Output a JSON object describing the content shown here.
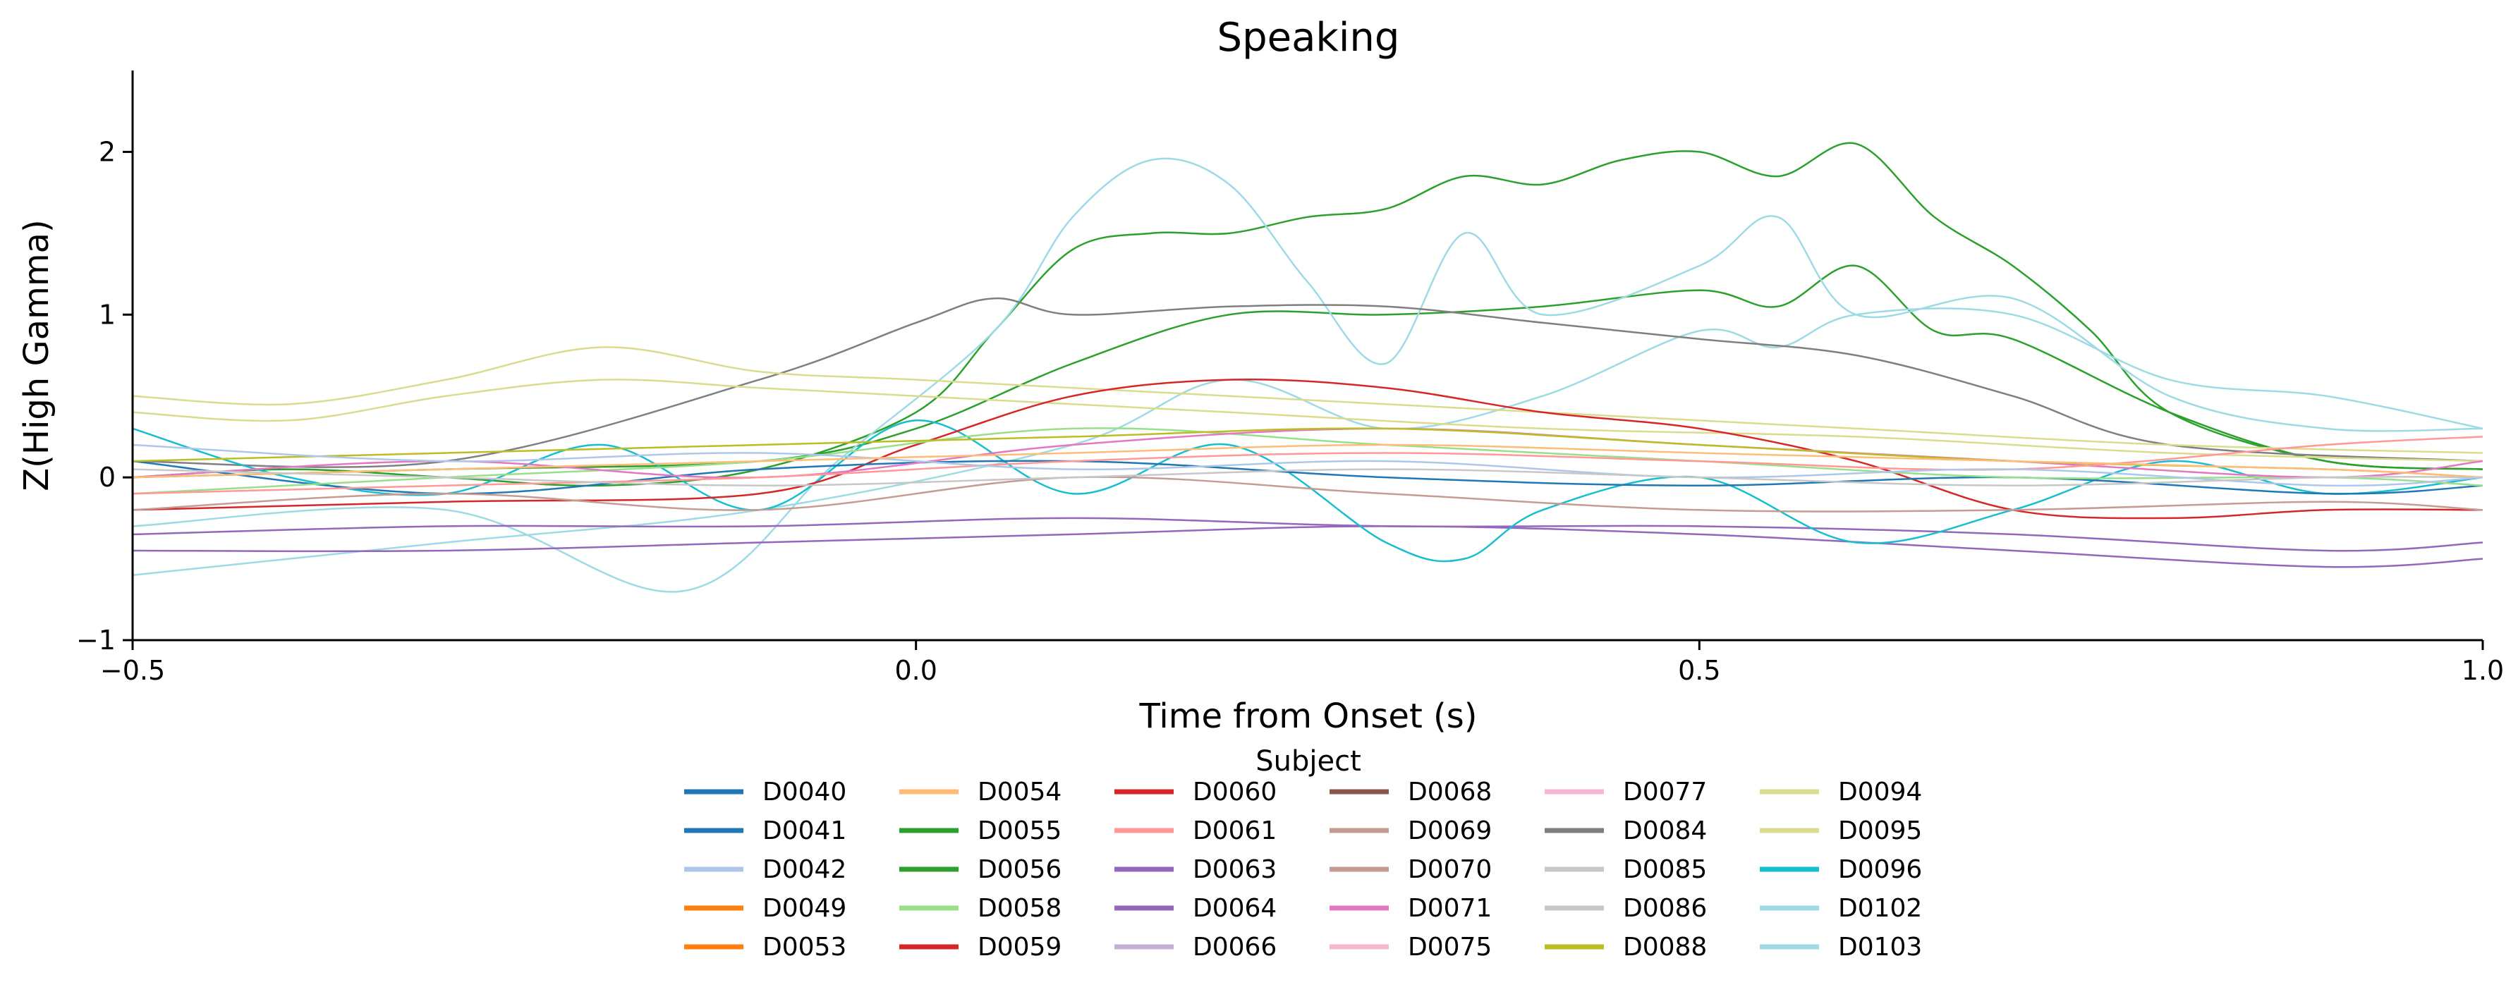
{
  "chart_data": {
    "type": "line",
    "title": "Speaking",
    "xlabel": "Time from Onset (s)",
    "ylabel": "Z(High Gamma)",
    "xlim": [
      -0.5,
      1.0
    ],
    "ylim": [
      -1.0,
      2.5
    ],
    "xticks": [
      -0.5,
      0.0,
      0.5,
      1.0
    ],
    "xtick_labels": [
      "−0.5",
      "0.0",
      "0.5",
      "1.0"
    ],
    "yticks": [
      -1,
      0,
      1,
      2
    ],
    "ytick_labels": [
      "−1",
      "0",
      "1",
      "2"
    ],
    "grid": false,
    "legend": {
      "title": "Subject",
      "placement": "bottom-center",
      "columns": 6
    },
    "subjects": [
      {
        "name": "D0040",
        "color": "#1f77b4"
      },
      {
        "name": "D0041",
        "color": "#1f77b4"
      },
      {
        "name": "D0042",
        "color": "#aec7e8"
      },
      {
        "name": "D0049",
        "color": "#ff7f0e"
      },
      {
        "name": "D0053",
        "color": "#ff7f0e"
      },
      {
        "name": "D0054",
        "color": "#ffbb78"
      },
      {
        "name": "D0055",
        "color": "#2ca02c"
      },
      {
        "name": "D0056",
        "color": "#2ca02c"
      },
      {
        "name": "D0058",
        "color": "#98df8a"
      },
      {
        "name": "D0059",
        "color": "#d62728"
      },
      {
        "name": "D0060",
        "color": "#d62728"
      },
      {
        "name": "D0061",
        "color": "#ff9896"
      },
      {
        "name": "D0063",
        "color": "#9467bd"
      },
      {
        "name": "D0064",
        "color": "#9467bd"
      },
      {
        "name": "D0066",
        "color": "#c5b0d5"
      },
      {
        "name": "D0068",
        "color": "#8c564b"
      },
      {
        "name": "D0069",
        "color": "#c49c94"
      },
      {
        "name": "D0070",
        "color": "#c49c94"
      },
      {
        "name": "D0071",
        "color": "#e377c2"
      },
      {
        "name": "D0075",
        "color": "#f7b6d2"
      },
      {
        "name": "D0077",
        "color": "#f7b6d2"
      },
      {
        "name": "D0084",
        "color": "#7f7f7f"
      },
      {
        "name": "D0085",
        "color": "#c7c7c7"
      },
      {
        "name": "D0086",
        "color": "#c7c7c7"
      },
      {
        "name": "D0088",
        "color": "#bcbd22"
      },
      {
        "name": "D0094",
        "color": "#dbdb8d"
      },
      {
        "name": "D0095",
        "color": "#dbdb8d"
      },
      {
        "name": "D0096",
        "color": "#17becf"
      },
      {
        "name": "D0102",
        "color": "#9edae5"
      },
      {
        "name": "D0103",
        "color": "#9edae5"
      }
    ],
    "series": [
      {
        "subject": "D0055",
        "color": "#2ca02c",
        "x": [
          -0.5,
          -0.4,
          -0.3,
          -0.2,
          -0.1,
          0.0,
          0.05,
          0.1,
          0.15,
          0.2,
          0.25,
          0.3,
          0.35,
          0.4,
          0.45,
          0.5,
          0.55,
          0.6,
          0.65,
          0.7,
          0.75,
          0.8,
          0.9,
          1.0
        ],
        "y": [
          0.0,
          0.05,
          0.0,
          -0.05,
          0.05,
          0.4,
          0.9,
          1.4,
          1.5,
          1.5,
          1.6,
          1.65,
          1.85,
          1.8,
          1.95,
          2.0,
          1.85,
          2.05,
          1.6,
          1.3,
          0.9,
          0.4,
          0.1,
          0.05
        ]
      },
      {
        "subject": "D0056",
        "color": "#2ca02c",
        "x": [
          -0.5,
          -0.3,
          -0.1,
          0.0,
          0.1,
          0.2,
          0.3,
          0.4,
          0.5,
          0.55,
          0.6,
          0.65,
          0.7,
          0.8,
          0.9,
          1.0
        ],
        "y": [
          0.0,
          0.05,
          0.1,
          0.3,
          0.7,
          1.0,
          1.0,
          1.05,
          1.15,
          1.05,
          1.3,
          0.9,
          0.85,
          0.4,
          0.1,
          0.05
        ]
      },
      {
        "subject": "D0102",
        "color": "#9edae5",
        "x": [
          -0.5,
          -0.3,
          -0.15,
          -0.05,
          0.05,
          0.1,
          0.15,
          0.2,
          0.25,
          0.3,
          0.35,
          0.4,
          0.5,
          0.55,
          0.6,
          0.7,
          0.8,
          0.9,
          1.0
        ],
        "y": [
          -0.3,
          -0.2,
          -0.7,
          0.1,
          0.9,
          1.6,
          1.95,
          1.8,
          1.2,
          0.7,
          1.5,
          1.0,
          1.3,
          1.6,
          1.0,
          1.1,
          0.5,
          0.3,
          0.3
        ]
      },
      {
        "subject": "D0103",
        "color": "#9edae5",
        "x": [
          -0.5,
          -0.3,
          -0.1,
          0.1,
          0.2,
          0.3,
          0.4,
          0.5,
          0.55,
          0.6,
          0.7,
          0.8,
          0.9,
          1.0
        ],
        "y": [
          -0.6,
          -0.4,
          -0.2,
          0.2,
          0.6,
          0.3,
          0.5,
          0.9,
          0.8,
          1.0,
          1.0,
          0.6,
          0.5,
          0.3
        ]
      },
      {
        "subject": "D0084",
        "color": "#7f7f7f",
        "x": [
          -0.5,
          -0.3,
          -0.1,
          0.0,
          0.05,
          0.1,
          0.2,
          0.3,
          0.4,
          0.5,
          0.6,
          0.7,
          0.8,
          1.0
        ],
        "y": [
          0.1,
          0.1,
          0.6,
          0.95,
          1.1,
          1.0,
          1.05,
          1.05,
          0.95,
          0.85,
          0.75,
          0.5,
          0.2,
          0.1
        ]
      },
      {
        "subject": "D0094",
        "color": "#dbdb8d",
        "x": [
          -0.5,
          -0.4,
          -0.3,
          -0.2,
          -0.1,
          0.0,
          0.2,
          0.4,
          0.6,
          0.8,
          1.0
        ],
        "y": [
          0.5,
          0.45,
          0.6,
          0.8,
          0.65,
          0.6,
          0.5,
          0.4,
          0.3,
          0.2,
          0.15
        ]
      },
      {
        "subject": "D0095",
        "color": "#dbdb8d",
        "x": [
          -0.5,
          -0.4,
          -0.3,
          -0.2,
          -0.1,
          0.0,
          0.2,
          0.4,
          0.6,
          0.8,
          1.0
        ],
        "y": [
          0.4,
          0.35,
          0.5,
          0.6,
          0.55,
          0.5,
          0.4,
          0.3,
          0.25,
          0.15,
          0.1
        ]
      },
      {
        "subject": "D0063",
        "color": "#9467bd",
        "x": [
          -0.5,
          -0.3,
          -0.1,
          0.1,
          0.3,
          0.5,
          0.7,
          0.9,
          1.0
        ],
        "y": [
          -0.45,
          -0.45,
          -0.4,
          -0.35,
          -0.3,
          -0.35,
          -0.45,
          -0.55,
          -0.5
        ]
      },
      {
        "subject": "D0064",
        "color": "#9467bd",
        "x": [
          -0.5,
          -0.3,
          -0.1,
          0.1,
          0.3,
          0.5,
          0.7,
          0.9,
          1.0
        ],
        "y": [
          -0.35,
          -0.3,
          -0.3,
          -0.25,
          -0.3,
          -0.3,
          -0.35,
          -0.45,
          -0.4
        ]
      },
      {
        "subject": "D0096",
        "color": "#17becf",
        "x": [
          -0.5,
          -0.4,
          -0.3,
          -0.2,
          -0.1,
          0.0,
          0.1,
          0.2,
          0.3,
          0.35,
          0.4,
          0.5,
          0.6,
          0.7,
          0.8,
          0.9,
          1.0
        ],
        "y": [
          0.3,
          0.0,
          -0.1,
          0.2,
          -0.2,
          0.35,
          -0.1,
          0.2,
          -0.4,
          -0.5,
          -0.2,
          0.0,
          -0.4,
          -0.2,
          0.1,
          -0.1,
          0.0
        ]
      },
      {
        "subject": "D0060",
        "color": "#d62728",
        "x": [
          -0.5,
          -0.3,
          -0.1,
          0.0,
          0.1,
          0.2,
          0.3,
          0.4,
          0.5,
          0.6,
          0.7,
          0.8,
          0.9,
          1.0
        ],
        "y": [
          -0.2,
          -0.15,
          -0.1,
          0.2,
          0.5,
          0.6,
          0.55,
          0.4,
          0.3,
          0.1,
          -0.2,
          -0.25,
          -0.2,
          -0.2
        ]
      },
      {
        "subject": "D0040",
        "color": "#1f77b4",
        "x": [
          -0.5,
          -0.3,
          -0.1,
          0.1,
          0.3,
          0.5,
          0.7,
          0.9,
          1.0
        ],
        "y": [
          0.1,
          -0.1,
          0.05,
          0.1,
          0.0,
          -0.05,
          0.0,
          -0.1,
          -0.05
        ]
      },
      {
        "subject": "D0058",
        "color": "#98df8a",
        "x": [
          -0.5,
          -0.3,
          -0.1,
          0.1,
          0.3,
          0.5,
          0.7,
          0.9,
          1.0
        ],
        "y": [
          -0.1,
          0.0,
          0.1,
          0.3,
          0.2,
          0.1,
          0.0,
          0.0,
          -0.05
        ]
      },
      {
        "subject": "D0069",
        "color": "#c49c94",
        "x": [
          -0.5,
          -0.3,
          -0.1,
          0.1,
          0.3,
          0.5,
          0.7,
          0.9,
          1.0
        ],
        "y": [
          -0.2,
          -0.1,
          -0.2,
          0.0,
          -0.1,
          -0.2,
          -0.2,
          -0.15,
          -0.2
        ]
      },
      {
        "subject": "D0071",
        "color": "#e377c2",
        "x": [
          -0.5,
          -0.3,
          -0.1,
          0.1,
          0.3,
          0.5,
          0.7,
          0.9,
          1.0
        ],
        "y": [
          0.0,
          0.1,
          0.0,
          0.2,
          0.3,
          0.2,
          0.1,
          0.0,
          0.1
        ]
      },
      {
        "subject": "D0088",
        "color": "#bcbd22",
        "x": [
          -0.5,
          -0.3,
          -0.1,
          0.1,
          0.3,
          0.5,
          0.7,
          0.9,
          1.0
        ],
        "y": [
          0.1,
          0.15,
          0.2,
          0.25,
          0.3,
          0.2,
          0.1,
          0.05,
          0.0
        ]
      },
      {
        "subject": "D0061",
        "color": "#ff9896",
        "x": [
          -0.5,
          -0.3,
          -0.1,
          0.1,
          0.3,
          0.5,
          0.7,
          0.9,
          1.0
        ],
        "y": [
          -0.1,
          -0.05,
          0.0,
          0.1,
          0.15,
          0.1,
          0.05,
          0.2,
          0.25
        ]
      },
      {
        "subject": "D0042",
        "color": "#aec7e8",
        "x": [
          -0.5,
          -0.3,
          -0.1,
          0.1,
          0.3,
          0.5,
          0.7,
          0.9,
          1.0
        ],
        "y": [
          0.2,
          0.1,
          0.15,
          0.05,
          0.1,
          0.0,
          0.05,
          -0.05,
          0.0
        ]
      },
      {
        "subject": "D0054",
        "color": "#ffbb78",
        "x": [
          -0.5,
          -0.3,
          -0.1,
          0.1,
          0.3,
          0.5,
          0.7,
          0.9,
          1.0
        ],
        "y": [
          0.0,
          0.05,
          0.1,
          0.15,
          0.2,
          0.15,
          0.1,
          0.05,
          0.0
        ]
      },
      {
        "subject": "D0085",
        "color": "#c7c7c7",
        "x": [
          -0.5,
          -0.3,
          -0.1,
          0.1,
          0.3,
          0.5,
          0.7,
          0.9,
          1.0
        ],
        "y": [
          0.05,
          0.0,
          -0.05,
          0.0,
          0.05,
          0.0,
          -0.05,
          0.0,
          0.0
        ]
      }
    ]
  }
}
